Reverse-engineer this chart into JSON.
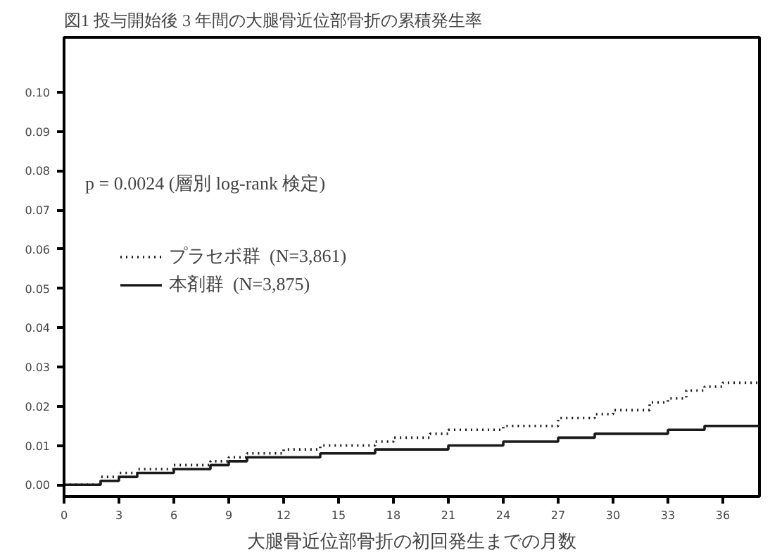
{
  "chart_data": {
    "type": "step",
    "title": "図1 投与開始後 3 年間の大腿骨近位部骨折の累積発生率",
    "xlabel": "大腿骨近位部骨折の初回発生までの月数",
    "annotations": [
      "p = 0.0024 (層別 log-rank 検定)"
    ],
    "x": [
      0,
      2,
      3,
      4,
      6,
      8,
      9,
      10,
      12,
      14,
      15,
      17,
      18,
      20,
      21,
      24,
      27,
      29,
      30,
      32,
      33,
      34,
      35,
      36,
      38
    ],
    "series": [
      {
        "name": "プラセボ群  (N=3,861)",
        "color": "#1a1a1a",
        "line_style": "dotted",
        "values": [
          0,
          0.002,
          0.003,
          0.004,
          0.005,
          0.006,
          0.007,
          0.008,
          0.009,
          0.01,
          0.01,
          0.011,
          0.012,
          0.013,
          0.014,
          0.015,
          0.017,
          0.018,
          0.019,
          0.021,
          0.022,
          0.024,
          0.025,
          0.026,
          0.026
        ]
      },
      {
        "name": "本剤群  (N=3,875)",
        "color": "#1a1a1a",
        "line_style": "solid",
        "values": [
          0,
          0.001,
          0.002,
          0.003,
          0.004,
          0.005,
          0.006,
          0.007,
          0.007,
          0.008,
          0.008,
          0.009,
          0.009,
          0.009,
          0.01,
          0.011,
          0.012,
          0.013,
          0.013,
          0.013,
          0.014,
          0.014,
          0.015,
          0.015,
          0.015
        ]
      }
    ],
    "xlim": [
      0,
      38
    ],
    "ylim": [
      -0.003,
      0.114
    ],
    "xticks": [
      0,
      3,
      6,
      9,
      12,
      15,
      18,
      21,
      24,
      27,
      30,
      33,
      36
    ],
    "yticks": [
      {
        "value": 0,
        "label": "0.00"
      },
      {
        "value": 0.01,
        "label": "0.01"
      },
      {
        "value": 0.02,
        "label": "0.02"
      },
      {
        "value": 0.03,
        "label": "0.03"
      },
      {
        "value": 0.04,
        "label": "0.04"
      },
      {
        "value": 0.05,
        "label": "0.05"
      },
      {
        "value": 0.06,
        "label": "0.06"
      },
      {
        "value": 0.07,
        "label": "0.07"
      },
      {
        "value": 0.08,
        "label": "0.08"
      },
      {
        "value": 0.09,
        "label": "0.09"
      },
      {
        "value": 0.1,
        "label": "0.10"
      }
    ],
    "grid": false,
    "legend": "left"
  }
}
